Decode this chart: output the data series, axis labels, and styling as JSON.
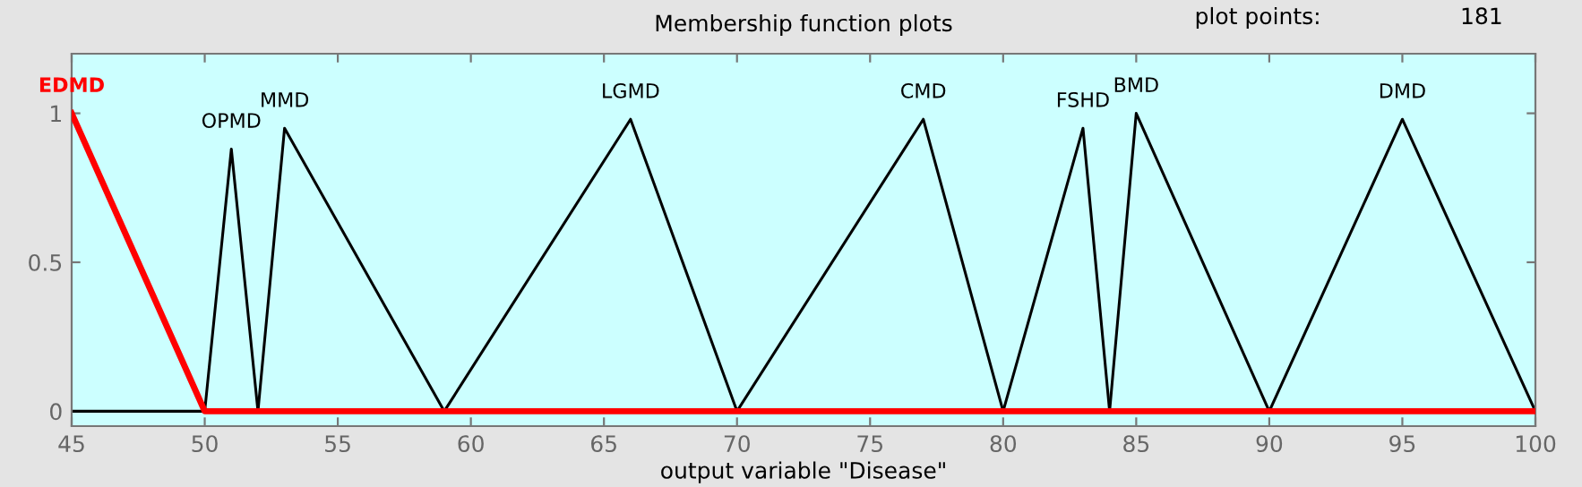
{
  "chart_data": {
    "type": "line",
    "title": "Membership function plots",
    "xlabel": "output variable \"Disease\"",
    "xlim": [
      45,
      100
    ],
    "ylim": [
      -0.05,
      1.2
    ],
    "xticks": [
      45,
      50,
      55,
      60,
      65,
      70,
      75,
      80,
      85,
      90,
      95,
      100
    ],
    "yticks": [
      0,
      0.5,
      1
    ],
    "grid": false,
    "legend": false,
    "annotations": [
      "plot points:",
      "181"
    ],
    "series": [
      {
        "name": "OPMD",
        "color": "#000000",
        "x": [
          45,
          50,
          51,
          52
        ],
        "values": [
          0,
          0,
          0.88,
          0
        ]
      },
      {
        "name": "MMD",
        "color": "#000000",
        "x": [
          52,
          53,
          59
        ],
        "values": [
          0,
          0.95,
          0
        ]
      },
      {
        "name": "LGMD",
        "color": "#000000",
        "x": [
          59,
          66,
          70
        ],
        "values": [
          0,
          0.98,
          0
        ]
      },
      {
        "name": "CMD",
        "color": "#000000",
        "x": [
          70,
          77,
          80
        ],
        "values": [
          0,
          0.98,
          0
        ]
      },
      {
        "name": "FSHD",
        "color": "#000000",
        "x": [
          80,
          83,
          84
        ],
        "values": [
          0,
          0.95,
          0
        ]
      },
      {
        "name": "BMD",
        "color": "#000000",
        "x": [
          84,
          85,
          90
        ],
        "values": [
          0,
          1,
          0
        ]
      },
      {
        "name": "DMD",
        "color": "#000000",
        "x": [
          90,
          95,
          100
        ],
        "values": [
          0,
          0.98,
          0
        ]
      },
      {
        "name": "EDMD",
        "color": "#ff0000",
        "x": [
          45,
          50,
          100
        ],
        "values": [
          1,
          0,
          0
        ]
      }
    ]
  }
}
